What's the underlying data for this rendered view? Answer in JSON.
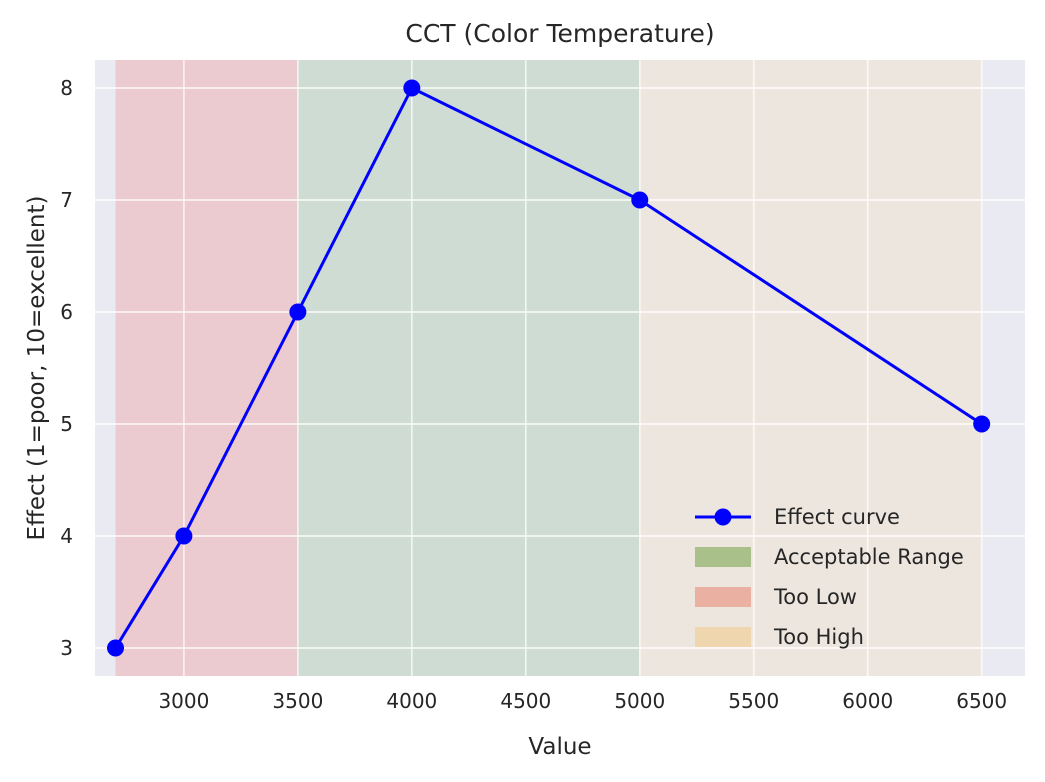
{
  "chart_data": {
    "type": "line",
    "title": "CCT (Color Temperature)",
    "xlabel": "Value",
    "ylabel": "Effect (1=poor, 10=excellent)",
    "xlim": [
      2610,
      6690
    ],
    "ylim": [
      2.75,
      8.25
    ],
    "xticks": [
      3000,
      3500,
      4000,
      4500,
      5000,
      5500,
      6000,
      6500
    ],
    "yticks": [
      3,
      4,
      5,
      6,
      7,
      8
    ],
    "grid": true,
    "legend_position": "lower-right",
    "series": [
      {
        "name": "Effect curve",
        "x": [
          2700,
          3000,
          3500,
          4000,
          5000,
          6500
        ],
        "y": [
          3,
          4,
          6,
          8,
          7,
          5
        ],
        "color": "#0000ff",
        "marker": "circle"
      }
    ],
    "bands": [
      {
        "name": "Too Low",
        "x_range": [
          2700,
          3500
        ],
        "color": "#f08080"
      },
      {
        "name": "Acceptable Range",
        "x_range": [
          3500,
          5000
        ],
        "color": "#8fbc8f"
      },
      {
        "name": "Too High",
        "x_range": [
          5000,
          6500
        ],
        "color": "#f5deb3"
      }
    ],
    "legend": [
      {
        "label": "Effect curve",
        "kind": "line-marker",
        "color": "#0000ff"
      },
      {
        "label": "Acceptable Range",
        "kind": "patch",
        "color": "#a9c08a"
      },
      {
        "label": "Too Low",
        "kind": "patch",
        "color": "#eab0a2"
      },
      {
        "label": "Too High",
        "kind": "patch",
        "color": "#efd6ae"
      }
    ],
    "background_color": "#eaeaf2"
  }
}
